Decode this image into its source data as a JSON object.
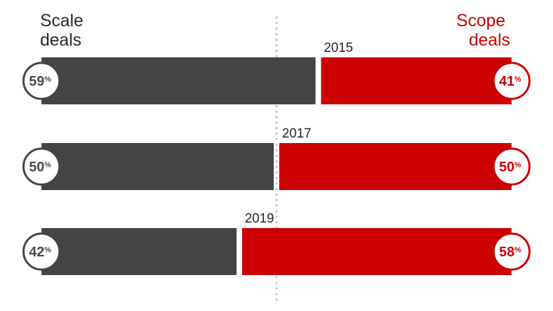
{
  "chart_data": {
    "type": "bar",
    "orientation": "horizontal-stacked-100",
    "categories": [
      "2015",
      "2017",
      "2019"
    ],
    "series": [
      {
        "name": "Scale deals",
        "values": [
          59,
          50,
          42
        ],
        "color": "#444444"
      },
      {
        "name": "Scope deals",
        "values": [
          41,
          50,
          58
        ],
        "color": "#cc0000"
      }
    ],
    "legend": {
      "left_label": [
        "Scale",
        "deals"
      ],
      "right_label": [
        "Scope",
        "deals"
      ]
    },
    "value_suffix": "%",
    "reference_line": {
      "value": 50,
      "style": "dotted",
      "color": "#c8c8c8"
    },
    "xlim": [
      0,
      100
    ],
    "grid": false
  }
}
